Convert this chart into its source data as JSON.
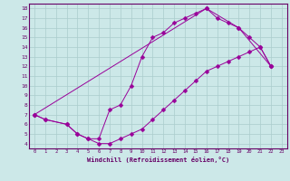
{
  "xlabel": "Windchill (Refroidissement éolien,°C)",
  "bg_color": "#cce8e8",
  "line_color": "#990099",
  "grid_color": "#aacccc",
  "axis_color": "#660066",
  "xlim": [
    -0.5,
    23.5
  ],
  "ylim": [
    3.5,
    18.5
  ],
  "xticks": [
    0,
    1,
    2,
    3,
    4,
    5,
    6,
    7,
    8,
    9,
    10,
    11,
    12,
    13,
    14,
    15,
    16,
    17,
    18,
    19,
    20,
    21,
    22,
    23
  ],
  "yticks": [
    4,
    5,
    6,
    7,
    8,
    9,
    10,
    11,
    12,
    13,
    14,
    15,
    16,
    17,
    18
  ],
  "line1_x": [
    0,
    1,
    3,
    4,
    5,
    6,
    7,
    8,
    9,
    10,
    11,
    12,
    13,
    14,
    15,
    16,
    17,
    18,
    19,
    20,
    21,
    22
  ],
  "line1_y": [
    7,
    6.5,
    6,
    5,
    4.5,
    4.5,
    7.5,
    8,
    10,
    13,
    15,
    15.5,
    16.5,
    17,
    17.5,
    18,
    17,
    16.5,
    16,
    15,
    14,
    12
  ],
  "line2_x": [
    0,
    1,
    3,
    4,
    5,
    6,
    7,
    8,
    9,
    10,
    11,
    12,
    13,
    14,
    15,
    16,
    17,
    18,
    19,
    20,
    21,
    22
  ],
  "line2_y": [
    7,
    6.5,
    6,
    5,
    4.5,
    4,
    4,
    4.5,
    5,
    5.5,
    6.5,
    7.5,
    8.5,
    9.5,
    10.5,
    11.5,
    12,
    12.5,
    13,
    13.5,
    14,
    12
  ],
  "line3_x": [
    0,
    16,
    19,
    22
  ],
  "line3_y": [
    7,
    18,
    16,
    12
  ]
}
